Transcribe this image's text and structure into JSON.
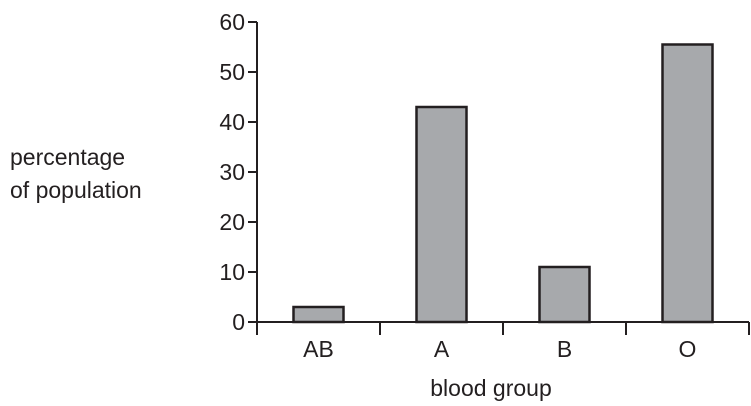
{
  "chart_data": {
    "type": "bar",
    "categories": [
      "AB",
      "A",
      "B",
      "O"
    ],
    "values": [
      3,
      43,
      11,
      55.5
    ],
    "title": "",
    "xlabel": "blood group",
    "ylabel": [
      "percentage",
      "of population"
    ],
    "ylim": [
      0,
      60
    ],
    "yticks": [
      0,
      10,
      20,
      30,
      40,
      50,
      60
    ],
    "grid": false,
    "legend": "none",
    "bar_color": "#a7a9ac",
    "edge_color": "#231f20"
  }
}
